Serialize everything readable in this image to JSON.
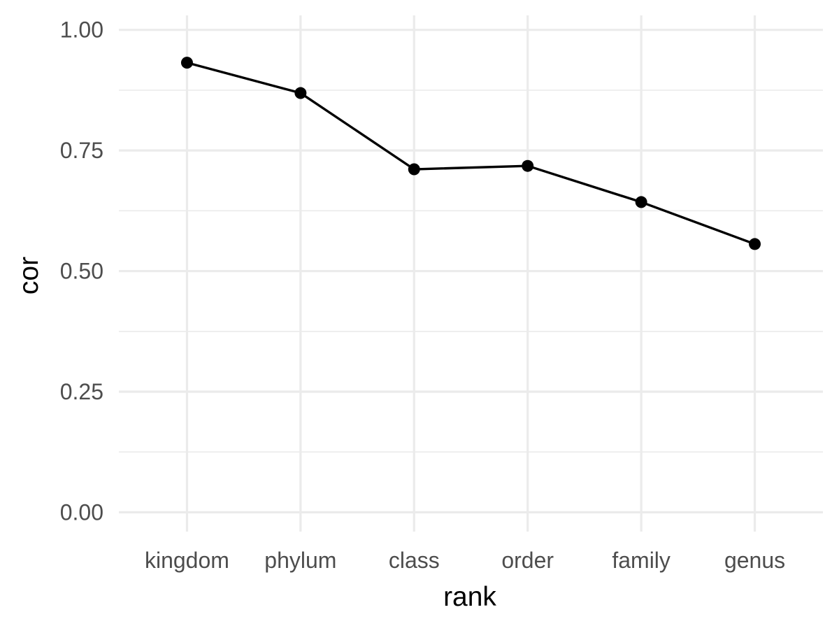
{
  "chart_data": {
    "type": "line",
    "xlabel": "rank",
    "ylabel": "cor",
    "categories": [
      "kingdom",
      "phylum",
      "class",
      "order",
      "family",
      "genus"
    ],
    "series": [
      {
        "values": [
          0.932,
          0.869,
          0.711,
          0.718,
          0.643,
          0.556
        ]
      }
    ],
    "ylim": [
      -0.04,
      1.03
    ],
    "yticks": [
      0.0,
      0.25,
      0.5,
      0.75,
      1.0
    ],
    "ytick_labels": [
      "0.00",
      "0.25",
      "0.50",
      "0.75",
      "1.00"
    ],
    "yminor": [
      0.125,
      0.375,
      0.625,
      0.875
    ],
    "grid": true,
    "legend": "none",
    "colors": {
      "line": "#000000",
      "point": "#000000",
      "grid": "#ebebeb"
    }
  }
}
